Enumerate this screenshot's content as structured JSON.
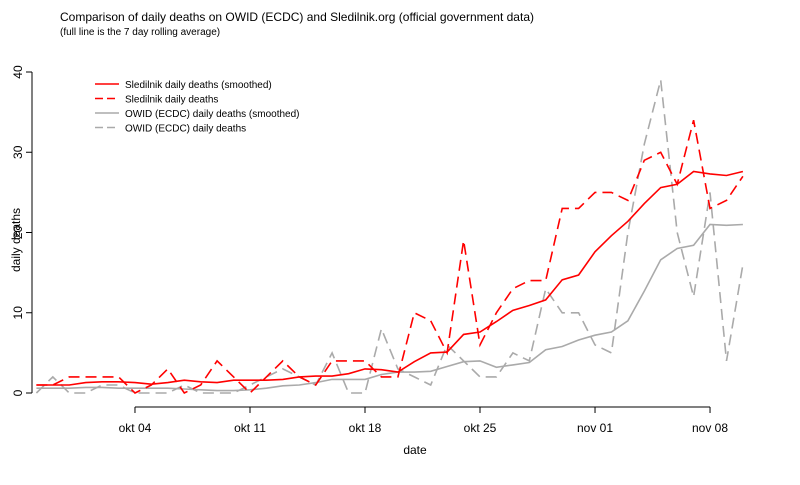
{
  "chart_data": {
    "type": "line",
    "title": "Comparison of daily deaths on OWID (ECDC) and Sledilnik.org (official government data)",
    "subtitle": "(full line is the 7 day rolling average)",
    "x_label": "date",
    "y_label": "daily deaths",
    "x": [
      "sep 28",
      "sep 29",
      "sep 30",
      "okt 01",
      "okt 02",
      "okt 03",
      "okt 04",
      "okt 05",
      "okt 06",
      "okt 07",
      "okt 08",
      "okt 09",
      "okt 10",
      "okt 11",
      "okt 12",
      "okt 13",
      "okt 14",
      "okt 15",
      "okt 16",
      "okt 17",
      "okt 18",
      "okt 19",
      "okt 20",
      "okt 21",
      "okt 22",
      "okt 23",
      "okt 24",
      "okt 25",
      "okt 26",
      "okt 27",
      "okt 28",
      "okt 29",
      "okt 30",
      "okt 31",
      "nov 01",
      "nov 02",
      "nov 03",
      "nov 04",
      "nov 05",
      "nov 06",
      "nov 07",
      "nov 08",
      "nov 09",
      "nov 10"
    ],
    "xticks": [
      "okt 04",
      "okt 11",
      "okt 18",
      "okt 25",
      "nov 01",
      "nov 08"
    ],
    "ylim": [
      0,
      40
    ],
    "yticks": [
      0,
      10,
      20,
      30,
      40
    ],
    "legend": "top-left",
    "series": [
      {
        "name": "Sledilnik daily deaths (smoothed)",
        "color": "#ff0000",
        "linestyle": "solid",
        "values": [
          1,
          1,
          1,
          1.3,
          1.4,
          1.4,
          1.3,
          1.1,
          1.3,
          1.6,
          1.4,
          1.3,
          1.6,
          1.6,
          1.6,
          1.7,
          2,
          2.1,
          2.1,
          2.4,
          3,
          2.9,
          2.6,
          3.9,
          5,
          5.1,
          7.3,
          7.6,
          8.9,
          10.3,
          10.9,
          11.6,
          14.1,
          14.7,
          17.6,
          19.6,
          21.4,
          23.6,
          25.6,
          26,
          27.6,
          27.3,
          27.1,
          27.6
        ]
      },
      {
        "name": "Sledilnik daily deaths",
        "color": "#ff0000",
        "linestyle": "dashed",
        "values": [
          1,
          1,
          2,
          2,
          2,
          2,
          0,
          1,
          3,
          0,
          1,
          4,
          2,
          0,
          2,
          4,
          2,
          1,
          4,
          4,
          4,
          2,
          2,
          10,
          9,
          5,
          19,
          6,
          10,
          13,
          14,
          14,
          23,
          23,
          25,
          25,
          24,
          29,
          30,
          26,
          34,
          23,
          24,
          27
        ]
      },
      {
        "name": "OWID (ECDC) daily deaths (smoothed)",
        "color": "#aaaaaa",
        "linestyle": "solid",
        "values": [
          0.6,
          0.6,
          0.6,
          0.7,
          0.7,
          0.6,
          0.6,
          0.6,
          0.6,
          0.5,
          0.4,
          0.3,
          0.3,
          0.4,
          0.6,
          0.9,
          1,
          1.3,
          1.7,
          1.7,
          1.7,
          2.3,
          2.6,
          2.6,
          2.7,
          3.3,
          3.9,
          4,
          3.2,
          3.5,
          3.8,
          5.4,
          5.8,
          6.6,
          7.2,
          7.6,
          9,
          12.7,
          16.6,
          18,
          18.4,
          21,
          20.9,
          21
        ]
      },
      {
        "name": "OWID (ECDC) daily deaths",
        "color": "#aaaaaa",
        "linestyle": "dashed",
        "values": [
          0,
          2,
          0,
          0,
          1,
          1,
          0,
          0,
          0,
          1,
          0,
          0,
          0,
          1,
          2,
          3,
          2,
          1,
          5,
          0,
          0,
          8,
          3,
          2,
          1,
          6,
          4,
          2,
          2,
          5,
          4,
          13,
          10,
          10,
          6,
          5,
          20,
          31,
          39,
          20,
          12,
          25,
          4,
          16
        ]
      }
    ]
  }
}
